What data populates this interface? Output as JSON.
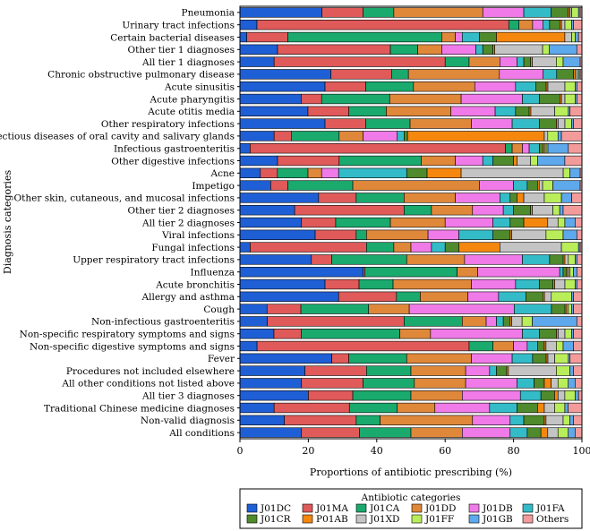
{
  "chart_data": {
    "type": "bar",
    "orientation": "horizontal",
    "stacked": true,
    "xlabel": "Proportions of antibiotic prescribing (%)",
    "ylabel": "Diagnosis categories",
    "xlim": [
      0,
      100
    ],
    "xticks": [
      "0",
      "20",
      "40",
      "60",
      "80",
      "100"
    ],
    "legend": {
      "title": "Antibiotic categories",
      "placement": "bottom-right"
    },
    "series": [
      {
        "name": "J01DC",
        "color": "#1f5fd6"
      },
      {
        "name": "J01MA",
        "color": "#e05a5a"
      },
      {
        "name": "J01CA",
        "color": "#1aaa6e"
      },
      {
        "name": "J01DD",
        "color": "#e0883a"
      },
      {
        "name": "J01DB",
        "color": "#f07ae8"
      },
      {
        "name": "J01FA",
        "color": "#33bcc8"
      },
      {
        "name": "J01CR",
        "color": "#4f8a2c"
      },
      {
        "name": "P01AB",
        "color": "#f5870f"
      },
      {
        "name": "J01XD",
        "color": "#c4c4c4"
      },
      {
        "name": "J01FF",
        "color": "#b9ee5a"
      },
      {
        "name": "J01GB",
        "color": "#5ea8ec"
      },
      {
        "name": "Others",
        "color": "#f39b9b"
      }
    ],
    "categories": [
      "Pneumonia",
      "Urinary tract infections",
      "Certain bacterial diseases",
      "Other tier 1 diagnoses",
      "All tier 1 diagnoses",
      "Chronic obstructive pulmonary disease",
      "Acute sinusitis",
      "Acute pharyngitis",
      "Acute otitis media",
      "Other respiratory infections",
      "Infectious diseases of oral cavity and salivary glands",
      "Infectious gastroenteritis",
      "Other digestive infections",
      "Acne",
      "Impetigo",
      "Other skin, cutaneous, and mucosal infections",
      "Other tier 2 diagnoses",
      "All tier 2 diagnoses",
      "Viral infections",
      "Fungal infections",
      "Upper respiratory tract infections",
      "Influenza",
      "Acute bronchitis",
      "Allergy and asthma",
      "Cough",
      "Non-infectious gastroenteritis",
      "Non-specific respiratory symptoms and signs",
      "Non-specific digestive symptoms and signs",
      "Fever",
      "Procedures not included elsewhere",
      "All other conditions not listed above",
      "All tier 3 diagnoses",
      "Traditional Chinese medicine diagnoses",
      "Non-valid diagnosis",
      "All conditions"
    ],
    "values": [
      [
        24,
        12,
        9,
        26,
        12,
        8,
        5,
        0.5,
        0.5,
        2,
        0.5,
        0.5
      ],
      [
        5,
        74,
        3,
        4,
        3,
        2,
        3,
        0.5,
        1,
        2,
        0.5,
        2.5
      ],
      [
        2,
        12,
        45,
        4,
        2,
        5,
        5,
        20,
        2,
        1,
        1,
        1
      ],
      [
        11,
        33,
        8,
        7,
        10,
        2,
        3,
        0.5,
        14,
        2,
        8,
        1.5
      ],
      [
        10,
        50,
        7,
        9,
        5,
        2,
        2,
        0.5,
        7,
        2,
        5,
        0.5
      ],
      [
        27,
        18,
        5,
        27,
        13,
        4,
        5,
        0.5,
        0.5,
        0.5,
        0.5,
        0.5
      ],
      [
        25,
        12,
        14,
        18,
        12,
        6,
        3,
        0.5,
        5,
        3,
        0.5,
        1.5
      ],
      [
        18,
        6,
        20,
        21,
        18,
        5,
        6,
        0.5,
        1,
        3,
        0.5,
        1.5
      ],
      [
        20,
        12,
        11,
        19,
        13,
        6,
        4,
        0.5,
        7,
        4,
        0.5,
        3.5
      ],
      [
        25,
        12,
        13,
        18,
        12,
        8,
        5,
        0.5,
        2,
        2,
        0.5,
        2.5
      ],
      [
        10,
        5,
        14,
        7,
        10,
        2,
        1,
        40,
        1,
        3,
        1,
        6
      ],
      [
        3,
        75,
        2,
        3,
        2,
        3,
        1,
        0.5,
        0.5,
        0.5,
        6,
        4
      ],
      [
        11,
        18,
        24,
        10,
        8,
        3,
        6,
        1,
        4,
        2,
        8,
        5
      ],
      [
        6,
        5,
        9,
        4,
        5,
        20,
        6,
        10,
        30,
        2,
        3,
        0.5
      ],
      [
        9,
        5,
        19,
        37,
        10,
        4,
        3,
        0.5,
        1,
        3,
        8,
        0.5
      ],
      [
        23,
        11,
        14,
        15,
        13,
        3,
        2,
        2,
        6,
        5,
        3,
        3
      ],
      [
        16,
        32,
        8,
        12,
        9,
        3,
        5,
        0.5,
        6,
        2,
        1,
        5.5
      ],
      [
        18,
        10,
        16,
        16,
        14,
        5,
        4,
        7,
        3,
        2,
        3,
        2
      ],
      [
        22,
        12,
        3,
        18,
        9,
        10,
        5,
        0.5,
        10,
        5,
        4,
        1.5
      ],
      [
        3,
        34,
        8,
        5,
        6,
        4,
        4,
        12,
        18,
        5,
        0.5,
        0.5
      ],
      [
        21,
        6,
        22,
        17,
        17,
        8,
        4,
        0.5,
        1,
        2,
        0.5,
        1.5
      ],
      [
        36,
        0.5,
        27,
        6,
        24,
        1,
        1,
        0.5,
        0.5,
        1,
        1,
        1.5
      ],
      [
        25,
        10,
        10,
        23,
        13,
        7,
        4,
        0.5,
        3,
        3,
        0.5,
        1.5
      ],
      [
        29,
        17,
        7,
        14,
        9,
        8,
        5,
        0.5,
        2,
        6,
        0.5,
        2.5
      ],
      [
        8,
        10,
        20,
        12,
        31,
        11,
        4,
        0.5,
        0.5,
        1,
        0.5,
        2.5
      ],
      [
        8,
        40,
        17,
        7,
        3,
        2,
        2,
        0.5,
        3,
        3,
        13,
        1.5
      ],
      [
        10,
        8,
        29,
        9,
        27,
        5,
        5,
        0.5,
        2,
        2,
        0.5,
        2.5
      ],
      [
        5,
        62,
        7,
        6,
        4,
        3,
        2,
        0.5,
        3,
        2,
        3,
        2.5
      ],
      [
        27,
        5,
        17,
        19,
        12,
        6,
        4,
        0.5,
        2,
        4,
        0.5,
        3.5
      ],
      [
        19,
        18,
        13,
        16,
        7,
        2,
        3,
        0.5,
        14,
        4,
        1,
        2.5
      ],
      [
        18,
        18,
        15,
        15,
        15,
        5,
        3,
        2,
        2,
        3,
        2,
        2
      ],
      [
        20,
        13,
        17,
        15,
        17,
        6,
        4,
        1,
        2,
        3,
        1,
        1
      ],
      [
        10,
        22,
        14,
        11,
        16,
        8,
        6,
        2,
        3,
        3,
        1,
        4
      ],
      [
        13,
        21,
        7,
        27,
        11,
        4,
        6,
        0.5,
        5,
        2,
        1,
        2.5
      ],
      [
        18,
        17,
        15,
        15,
        14,
        5,
        4,
        2,
        3,
        3,
        2,
        2
      ]
    ]
  }
}
